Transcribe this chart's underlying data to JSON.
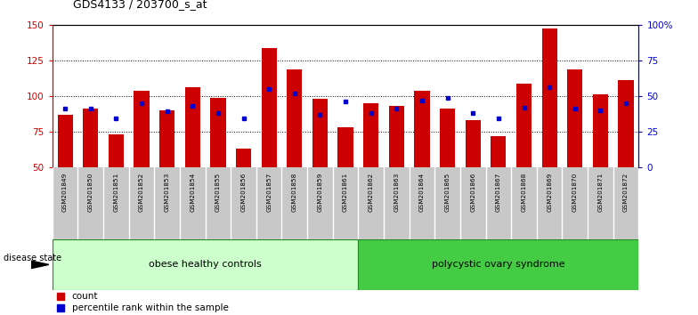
{
  "title": "GDS4133 / 203700_s_at",
  "samples": [
    "GSM201849",
    "GSM201850",
    "GSM201851",
    "GSM201852",
    "GSM201853",
    "GSM201854",
    "GSM201855",
    "GSM201856",
    "GSM201857",
    "GSM201858",
    "GSM201859",
    "GSM201861",
    "GSM201862",
    "GSM201863",
    "GSM201864",
    "GSM201865",
    "GSM201866",
    "GSM201867",
    "GSM201868",
    "GSM201869",
    "GSM201870",
    "GSM201871",
    "GSM201872"
  ],
  "count_values": [
    87,
    91,
    73,
    104,
    90,
    106,
    99,
    63,
    134,
    119,
    98,
    78,
    95,
    93,
    104,
    91,
    83,
    72,
    109,
    148,
    119,
    101,
    111
  ],
  "percentile_values": [
    91,
    91,
    84,
    95,
    89,
    93,
    88,
    84,
    105,
    102,
    87,
    96,
    88,
    91,
    97,
    99,
    88,
    84,
    92,
    106,
    91,
    90,
    95
  ],
  "g1_count": 12,
  "g2_count": 11,
  "ymin": 50,
  "ymax": 150,
  "bar_color": "#cc0000",
  "percentile_color": "#0000cc",
  "group1_facecolor": "#ccffcc",
  "group2_facecolor": "#44cc44",
  "group1_edgecolor": "#228822",
  "group2_edgecolor": "#228822",
  "tickbg_color": "#c8c8c8",
  "group1_label": "obese healthy controls",
  "group2_label": "polycystic ovary syndrome",
  "disease_state_label": "disease state",
  "legend_count": "count",
  "legend_pct": "percentile rank within the sample",
  "yticks": [
    50,
    75,
    100,
    125,
    150
  ],
  "ytick_right_labels": [
    "0",
    "25",
    "50",
    "75",
    "100%"
  ],
  "hlines": [
    75,
    100,
    125
  ]
}
